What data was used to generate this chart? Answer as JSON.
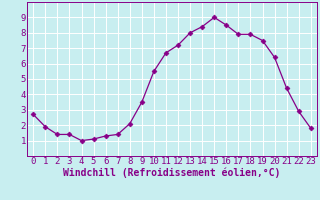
{
  "x": [
    0,
    1,
    2,
    3,
    4,
    5,
    6,
    7,
    8,
    9,
    10,
    11,
    12,
    13,
    14,
    15,
    16,
    17,
    18,
    19,
    20,
    21,
    22,
    23
  ],
  "y": [
    2.7,
    1.9,
    1.4,
    1.4,
    1.0,
    1.1,
    1.3,
    1.4,
    2.1,
    3.5,
    5.5,
    6.7,
    7.2,
    8.0,
    8.4,
    9.0,
    8.5,
    7.9,
    7.9,
    7.5,
    6.4,
    4.4,
    2.9,
    1.8
  ],
  "line_color": "#880088",
  "marker": "D",
  "marker_size": 2.5,
  "bg_color": "#c8eef0",
  "grid_color": "#ffffff",
  "xlabel": "Windchill (Refroidissement éolien,°C)",
  "xlabel_color": "#880088",
  "xlabel_fontsize": 7,
  "tick_color": "#880088",
  "tick_fontsize": 6.5,
  "ylim": [
    0,
    10
  ],
  "xlim": [
    -0.5,
    23.5
  ],
  "yticks": [
    1,
    2,
    3,
    4,
    5,
    6,
    7,
    8,
    9
  ],
  "xticks": [
    0,
    1,
    2,
    3,
    4,
    5,
    6,
    7,
    8,
    9,
    10,
    11,
    12,
    13,
    14,
    15,
    16,
    17,
    18,
    19,
    20,
    21,
    22,
    23
  ]
}
